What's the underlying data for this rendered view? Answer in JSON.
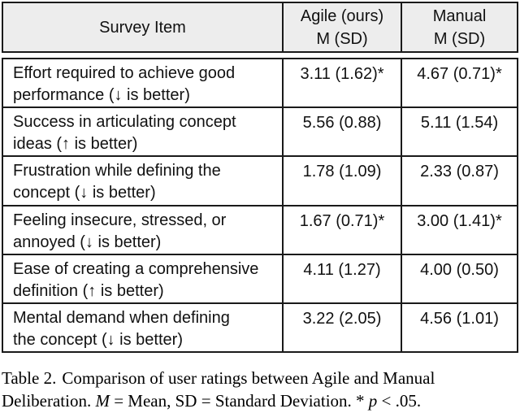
{
  "table": {
    "header": {
      "col1": "Survey Item",
      "col2": "Agile (ours)\nM (SD)",
      "col3": "Manual\nM (SD)"
    },
    "rows": [
      {
        "item": "Effort required to achieve good\nperformance (↓ is better)",
        "agile": "3.11 (1.62)*",
        "manual": "4.67 (0.71)*"
      },
      {
        "item": "Success in articulating concept\nideas (↑ is better)",
        "agile": "5.56 (0.88)",
        "manual": "5.11 (1.54)"
      },
      {
        "item": "Frustration while defining the\nconcept (↓ is better)",
        "agile": "1.78 (1.09)",
        "manual": "2.33 (0.87)"
      },
      {
        "item": "Feeling insecure, stressed, or\nannoyed (↓ is better)",
        "agile": "1.67 (0.71)*",
        "manual": "3.00 (1.41)*"
      },
      {
        "item": "Ease of creating a comprehensive\ndefinition (↑ is better)",
        "agile": "4.11 (1.27)",
        "manual": "4.00 (0.50)"
      },
      {
        "item": "Mental demand when defining\nthe concept (↓ is better)",
        "agile": "3.22 (2.05)",
        "manual": "4.56 (1.01)"
      }
    ]
  },
  "caption": {
    "line1": {
      "label": "Table 2.",
      "text": "Comparison of user ratings between Agile and Manual"
    },
    "line2": {
      "pre": "Deliberation.",
      "m": "M",
      "mid": "= Mean, SD = Standard Deviation. *",
      "p": "p",
      "end": "< .05."
    }
  },
  "colors": {
    "header_background": "#ededed",
    "border": "#1a1a1a",
    "text": "#111111",
    "page_background": "#ffffff"
  }
}
